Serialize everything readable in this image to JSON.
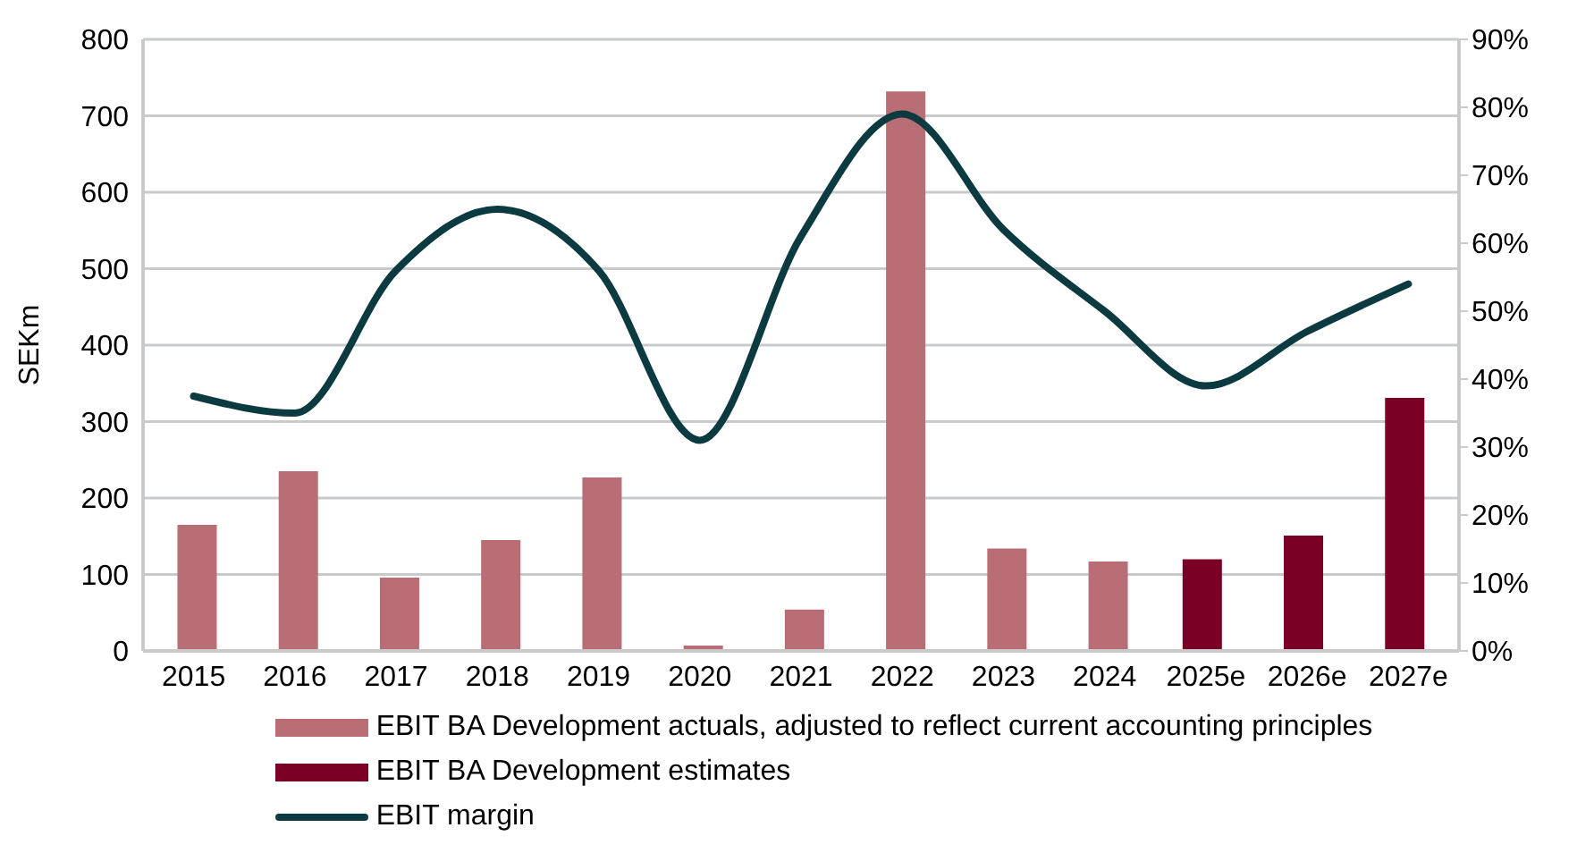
{
  "chart_data": {
    "type": "bar",
    "ylabel": "SEKm",
    "categories": [
      "2015",
      "2016",
      "2017",
      "2018",
      "2019",
      "2020",
      "2021",
      "2022",
      "2023",
      "2024",
      "2025e",
      "2026e",
      "2027e"
    ],
    "series": [
      {
        "name": "EBIT BA Development actuals, adjusted to reflect current accounting principles",
        "color": "#b96d75",
        "values": [
          165,
          235,
          96,
          145,
          227,
          7,
          54,
          732,
          134,
          117,
          null,
          null,
          null
        ]
      },
      {
        "name": "EBIT BA Development estimates",
        "color": "#7b0025",
        "values": [
          null,
          null,
          null,
          null,
          null,
          null,
          null,
          null,
          null,
          null,
          120,
          151,
          331
        ]
      },
      {
        "name": "EBIT margin",
        "type": "line",
        "axis": "y2",
        "color": "#0b3a40",
        "values": [
          37.5,
          35,
          56,
          65,
          56,
          31,
          61,
          79,
          62,
          50,
          39,
          47,
          54
        ]
      }
    ],
    "ylim": [
      0,
      800
    ],
    "yticks": [
      0,
      100,
      200,
      300,
      400,
      500,
      600,
      700,
      800
    ],
    "y2lim": [
      0,
      90
    ],
    "y2ticks": [
      {
        "value": 0,
        "label": "0%"
      },
      {
        "value": 10,
        "label": "10%"
      },
      {
        "value": 20,
        "label": "20%"
      },
      {
        "value": 30,
        "label": "30%"
      },
      {
        "value": 40,
        "label": "40%"
      },
      {
        "value": 50,
        "label": "50%"
      },
      {
        "value": 60,
        "label": "60%"
      },
      {
        "value": 70,
        "label": "70%"
      },
      {
        "value": 80,
        "label": "80%"
      },
      {
        "value": 90,
        "label": "90%"
      }
    ],
    "grid": "y",
    "legend": "bottom",
    "marker": "none",
    "line_style": "solid"
  }
}
